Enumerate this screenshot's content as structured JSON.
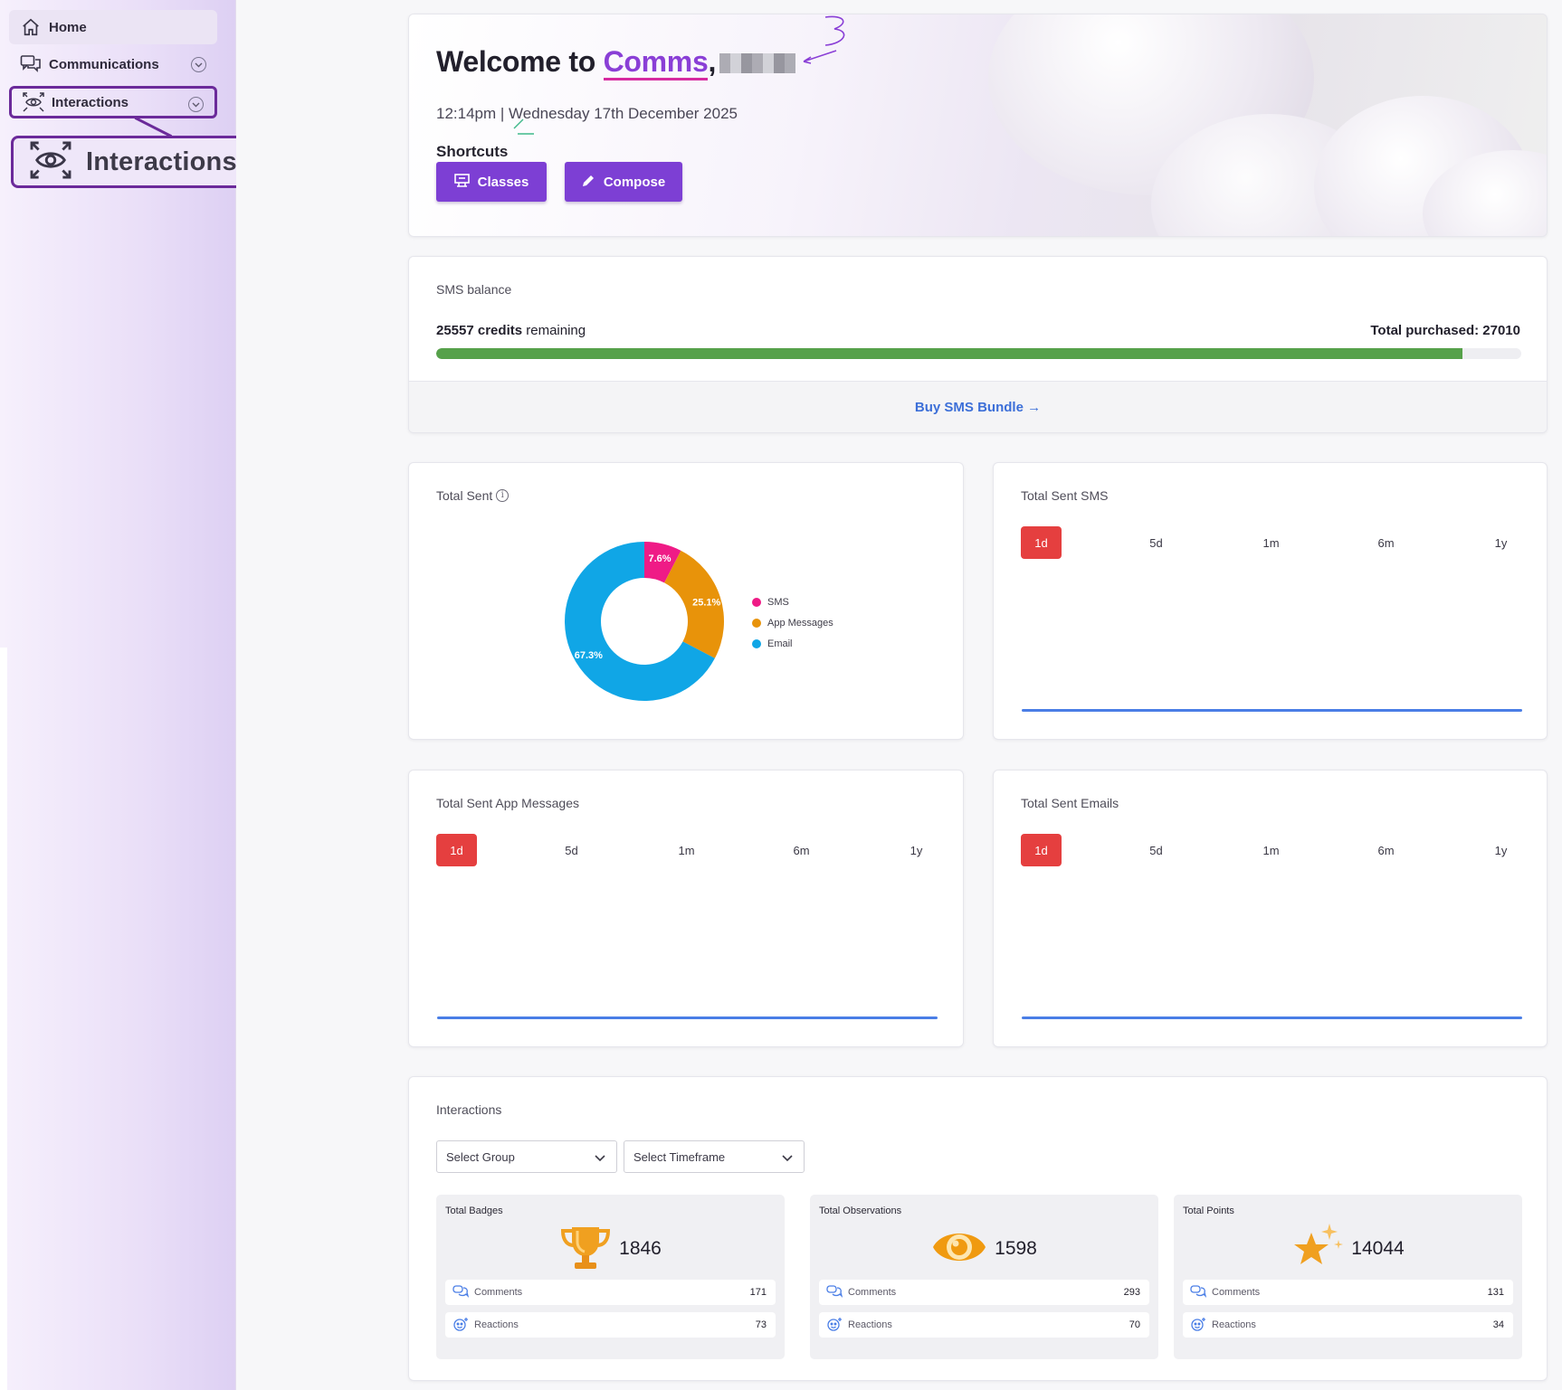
{
  "sidebar": {
    "items": [
      {
        "label": "Home",
        "icon": "home-icon"
      },
      {
        "label": "Communications",
        "icon": "chat-bubbles-icon"
      },
      {
        "label": "Interactions",
        "icon": "eye-arrows-icon"
      }
    ],
    "zoom_label": "Interactions"
  },
  "hero": {
    "title_prefix": "Welcome to ",
    "brand": "Comms",
    "title_suffix": ",",
    "datetime": "12:14pm | Wednesday 17th December 2025",
    "shortcuts_label": "Shortcuts",
    "buttons": [
      {
        "label": "Classes",
        "icon": "classroom-icon"
      },
      {
        "label": "Compose",
        "icon": "pencil-icon"
      }
    ]
  },
  "sms": {
    "label": "SMS balance",
    "credits_number": "25557 credits",
    "credits_suffix": " remaining",
    "total_purchased": "Total purchased: 27010",
    "progress_fraction": 0.946,
    "buy_link": "Buy SMS Bundle →",
    "bar_color": "#56a14a"
  },
  "charts": {
    "total_sent": {
      "title": "Total Sent"
    },
    "sms": {
      "title": "Total Sent SMS"
    },
    "app": {
      "title": "Total Sent App Messages"
    },
    "email": {
      "title": "Total Sent Emails"
    },
    "ranges": [
      "1d",
      "5d",
      "1m",
      "6m",
      "1y"
    ],
    "active_range": "1d"
  },
  "chart_data": {
    "type": "pie",
    "title": "Total Sent",
    "donut": true,
    "slices": [
      {
        "label": "SMS",
        "value": 7.6,
        "display": "7.6%",
        "color": "#ef1b86"
      },
      {
        "label": "App Messages",
        "value": 25.1,
        "display": "25.1%",
        "color": "#e8930a"
      },
      {
        "label": "Email",
        "value": 67.3,
        "display": "67.3%",
        "color": "#10a6e6"
      }
    ],
    "legend_position": "right"
  },
  "interactions": {
    "title": "Interactions",
    "group_select": "Select Group",
    "timeframe_select": "Select Timeframe",
    "stats": [
      {
        "title": "Total Badges",
        "value": "1846",
        "icon": "trophy-icon",
        "comments": "171",
        "reactions": "73"
      },
      {
        "title": "Total Observations",
        "value": "1598",
        "icon": "eye-icon",
        "comments": "293",
        "reactions": "70"
      },
      {
        "title": "Total Points",
        "value": "14044",
        "icon": "star-icon",
        "comments": "131",
        "reactions": "34"
      }
    ],
    "comments_label": "Comments",
    "reactions_label": "Reactions"
  },
  "colors": {
    "accent": "#7d3fd4",
    "brand_text": "#8a3fd6",
    "range_active": "#e53f3f",
    "line": "#4a7ee6"
  }
}
